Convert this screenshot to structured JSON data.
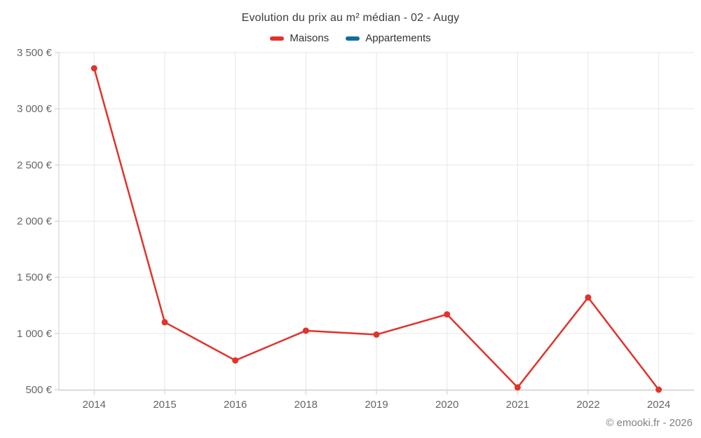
{
  "chart": {
    "title": "Evolution du prix au m² médian - 02 - Augy",
    "watermark": "© emooki.fr - 2026"
  },
  "chart_data": {
    "type": "line",
    "title": "Evolution du prix au m² médian - 02 - Augy",
    "categories": [
      "2014",
      "2015",
      "2016",
      "2018",
      "2019",
      "2020",
      "2021",
      "2022",
      "2024"
    ],
    "series": [
      {
        "name": "Maisons",
        "color": "#e0332c",
        "values": [
          3360,
          1100,
          760,
          1025,
          990,
          1170,
          520,
          1320,
          500
        ]
      },
      {
        "name": "Appartements",
        "color": "#0f6f9e",
        "values": []
      }
    ],
    "xlabel": "",
    "ylabel": "",
    "ylim": [
      500,
      3500
    ],
    "yticks": [
      {
        "value": 3500,
        "label": "3 500 €"
      },
      {
        "value": 3000,
        "label": "3 000 €"
      },
      {
        "value": 2500,
        "label": "2 500 €"
      },
      {
        "value": 2000,
        "label": "2 000 €"
      },
      {
        "value": 1500,
        "label": "1 500 €"
      },
      {
        "value": 1000,
        "label": "1 000 €"
      },
      {
        "value": 500,
        "label": "500 €"
      }
    ],
    "grid": true,
    "legend_position": "top",
    "grid_color": "#e6e6e6",
    "axis_color": "#cccccc",
    "tick_label_color": "#666666",
    "marker_radius": 4.5,
    "line_width": 2.5
  }
}
